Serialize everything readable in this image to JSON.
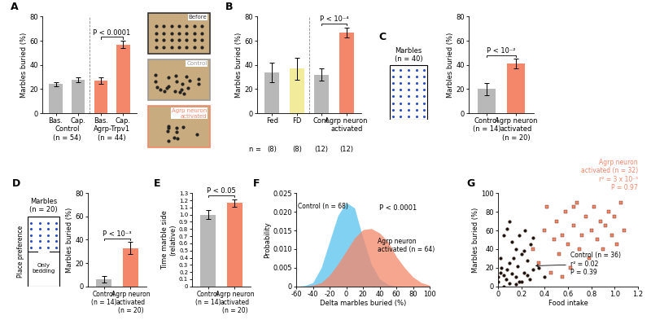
{
  "chart_data": [
    {
      "type": "bar",
      "title": "A",
      "categories": [
        "Bas.",
        "Cap.",
        "Bas.",
        "Cap."
      ],
      "values": [
        24,
        28,
        27,
        57
      ],
      "errors": [
        2,
        2,
        3,
        3
      ],
      "colors": [
        "#b8b8b8",
        "#b8b8b8",
        "#f4876a",
        "#f4876a"
      ],
      "y_label": "Marbles buried (%)",
      "ylim": [
        0,
        80
      ],
      "yticks": [
        0,
        20,
        40,
        60,
        80
      ],
      "group_labels": [
        "Control\n(n = 54)",
        "Agrp-Trpv1\n(n = 44)"
      ],
      "p_label": "P < 0.0001",
      "image_labels": [
        "Before",
        "Control",
        "Agrp neuron\nactivated"
      ]
    },
    {
      "type": "bar",
      "title": "B",
      "categories": [
        "Fed",
        "FD",
        "Cont.",
        "Agrp neuron\nactivated"
      ],
      "values": [
        34,
        37,
        32,
        67
      ],
      "errors": [
        8,
        9,
        5,
        4
      ],
      "colors": [
        "#b8b8b8",
        "#f3eb9c",
        "#b8b8b8",
        "#f4876a"
      ],
      "y_label": "Marbles buried (%)",
      "ylim": [
        0,
        80
      ],
      "yticks": [
        0,
        20,
        40,
        60,
        80
      ],
      "n_prefix": "n =",
      "n_labels": [
        "(8)",
        "(8)",
        "(12)",
        "(12)"
      ],
      "p_label": "P < 10⁻⁴"
    },
    {
      "type": "bar",
      "title": "C",
      "categories": [
        "Control\n(n = 14)",
        "Agrp neuron\nactivated\n(n = 20)"
      ],
      "values": [
        20,
        41
      ],
      "errors": [
        5,
        4
      ],
      "colors": [
        "#b8b8b8",
        "#f4876a"
      ],
      "y_label": "Marbles buried (%)",
      "ylim": [
        0,
        80
      ],
      "yticks": [
        0,
        20,
        40,
        60,
        80
      ],
      "schematic_label": "Marbles\n(n = 40)",
      "p_label": "P < 10⁻²"
    },
    {
      "type": "bar",
      "title": "D",
      "categories": [
        "Control\n(n = 14)",
        "Agrp neuron\nactivated\n(n = 20)"
      ],
      "values": [
        6,
        33
      ],
      "errors": [
        3,
        5
      ],
      "colors": [
        "#b8b8b8",
        "#f4876a"
      ],
      "y_label": "Marbles buried (%)",
      "ylim": [
        0,
        80
      ],
      "yticks": [
        0,
        20,
        40,
        60,
        80
      ],
      "schematic_label": "Marbles\n(n = 20)",
      "side_label": "Place preference",
      "bottom_label": "Only\nbedding",
      "p_label": "P < 10⁻³"
    },
    {
      "type": "bar",
      "title": "E",
      "categories": [
        "Control\n(n = 14)",
        "Agrp neuron\nactivated\n(n = 20)"
      ],
      "values": [
        1.0,
        1.165
      ],
      "errors": [
        0.06,
        0.05
      ],
      "colors": [
        "#b8b8b8",
        "#f4876a"
      ],
      "y_label": "Time marble side\n(relative)",
      "ylim": [
        0,
        1.3
      ],
      "yticks": [
        0,
        0.1,
        0.2,
        0.3,
        0.4,
        0.5,
        0.6,
        0.7,
        0.8,
        0.9,
        {
          "value": 1,
          "label": "1.0"
        },
        1.1,
        1.2,
        1.3
      ],
      "p_label": "P < 0.05"
    },
    {
      "type": "area",
      "title": "F",
      "x": [
        -60,
        -50,
        -40,
        -30,
        -20,
        -10,
        0,
        10,
        20,
        30,
        40,
        50,
        60,
        70,
        80,
        90,
        100
      ],
      "series": [
        {
          "name": "Control (n = 68)",
          "color": "#57c3ee",
          "values": [
            0,
            0.0002,
            0.001,
            0.005,
            0.012,
            0.019,
            0.0225,
            0.021,
            0.013,
            0.006,
            0.002,
            0.0005,
            0.0001,
            0,
            0,
            0,
            0
          ]
        },
        {
          "name": "Agrp neuron\nactivated (n = 64)",
          "color": "#f4876a",
          "values": [
            0,
            0,
            0.0003,
            0.001,
            0.003,
            0.006,
            0.0095,
            0.013,
            0.0152,
            0.0155,
            0.0143,
            0.012,
            0.008,
            0.005,
            0.0025,
            0.001,
            0.0003
          ]
        }
      ],
      "x_label": "Delta marbles buried (%)",
      "y_label": "Probability",
      "xlim": [
        -60,
        100
      ],
      "xticks": [
        -60,
        -40,
        -20,
        0,
        20,
        40,
        60,
        80,
        100
      ],
      "ylim": [
        0,
        0.025
      ],
      "yticks": [
        0,
        0.005,
        {
          "value": 0.01,
          "label": "0.010"
        },
        0.015,
        {
          "value": 0.02,
          "label": "0.020"
        },
        0.025
      ],
      "p_label": "P < 0.0001"
    },
    {
      "type": "scatter",
      "title": "G",
      "series": [
        {
          "name": "Control (n = 36)",
          "color": "#111111",
          "marker": "o",
          "annotation": [
            "r² = 0.02",
            "P = 0.39"
          ],
          "x": [
            0.0,
            0.0,
            0.02,
            0.03,
            0.05,
            0.05,
            0.07,
            0.08,
            0.1,
            0.1,
            0.12,
            0.13,
            0.15,
            0.15,
            0.17,
            0.18,
            0.2,
            0.2,
            0.22,
            0.23,
            0.25,
            0.25,
            0.27,
            0.28,
            0.3,
            0.3,
            0.05,
            0.08,
            0.1,
            0.02,
            0.15,
            0.35,
            0.4,
            0.12,
            0.18,
            0.22
          ],
          "y": [
            5,
            10,
            15,
            20,
            12,
            0,
            8,
            18,
            25,
            3,
            14,
            30,
            10,
            40,
            22,
            55,
            5,
            35,
            15,
            60,
            12,
            28,
            8,
            45,
            18,
            52,
            55,
            62,
            70,
            30,
            2,
            20,
            10,
            48,
            5,
            38
          ]
        },
        {
          "name": "Agrp neuron\nactivated (n = 32)",
          "color": "#f4876a",
          "marker": "s",
          "annotation": [
            "r² = 3 x 10⁻⁵",
            "P = 0.97"
          ],
          "x": [
            0.3,
            0.35,
            0.4,
            0.42,
            0.45,
            0.48,
            0.5,
            0.52,
            0.55,
            0.58,
            0.6,
            0.62,
            0.65,
            0.68,
            0.7,
            0.72,
            0.75,
            0.78,
            0.8,
            0.82,
            0.85,
            0.88,
            0.9,
            0.92,
            0.95,
            0.98,
            1.0,
            1.02,
            1.05,
            1.08,
            0.55,
            0.65
          ],
          "y": [
            40,
            25,
            60,
            85,
            15,
            50,
            70,
            35,
            55,
            80,
            45,
            20,
            65,
            90,
            40,
            55,
            75,
            30,
            60,
            85,
            50,
            70,
            40,
            65,
            80,
            55,
            75,
            45,
            90,
            60,
            10,
            85
          ]
        }
      ],
      "x_label": "Food intake",
      "y_label": "Marbles buried (%)",
      "xlim": [
        0,
        1.2
      ],
      "xticks": [
        0,
        0.2,
        0.4,
        0.6,
        0.8,
        {
          "value": 1,
          "label": "1.0"
        },
        1.2
      ],
      "ylim": [
        0,
        100
      ],
      "yticks": [
        0,
        20,
        40,
        60,
        80,
        100
      ]
    }
  ]
}
